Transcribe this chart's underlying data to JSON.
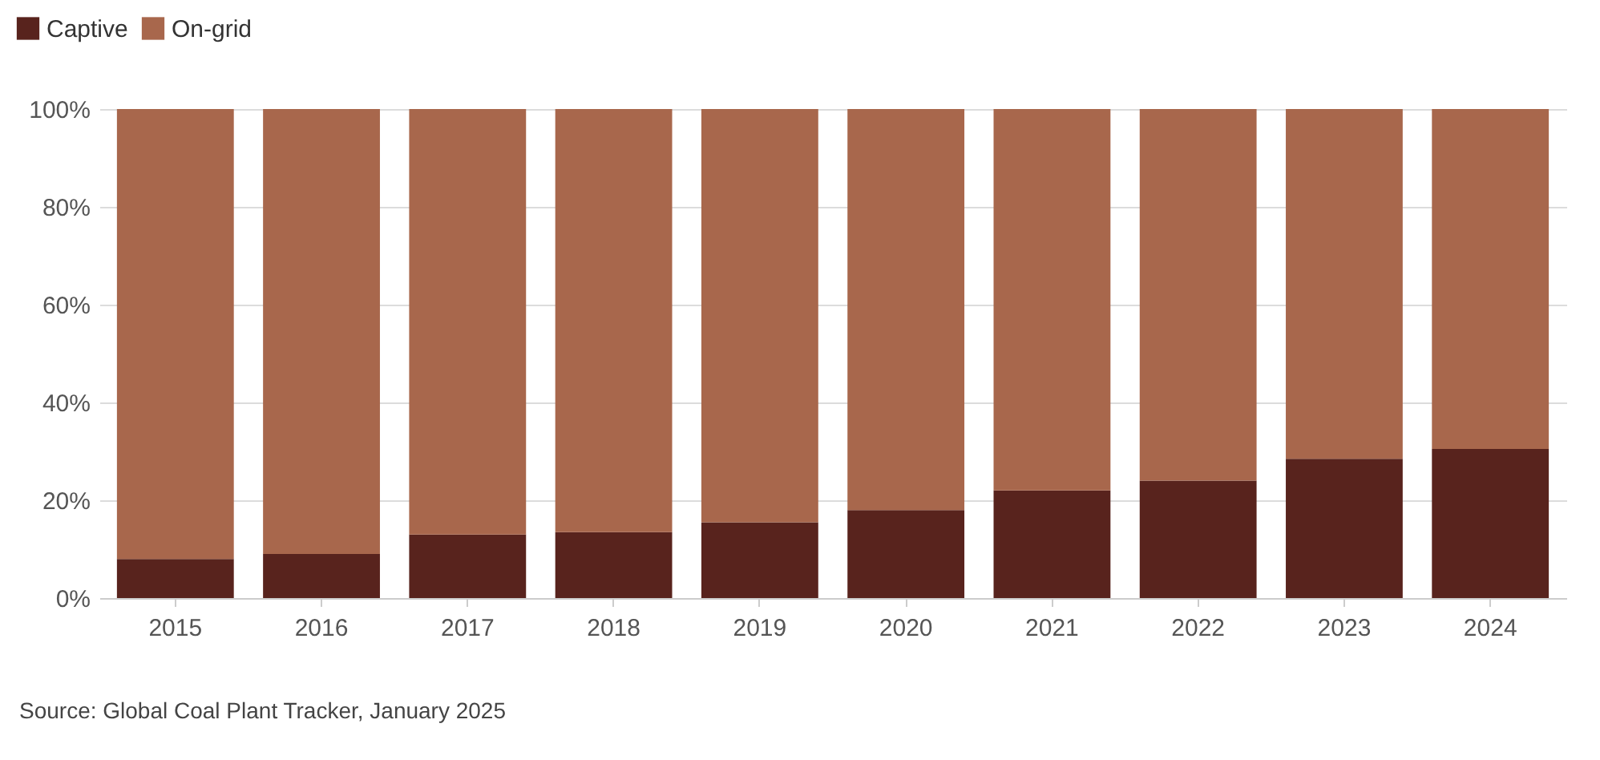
{
  "chart_data": {
    "type": "bar",
    "stacked": true,
    "categories": [
      "2015",
      "2016",
      "2017",
      "2018",
      "2019",
      "2020",
      "2021",
      "2022",
      "2023",
      "2024"
    ],
    "series": [
      {
        "name": "Captive",
        "color": "#58231d",
        "values": [
          8,
          9,
          13,
          13.5,
          15.5,
          18,
          22,
          24,
          28.5,
          30.5
        ]
      },
      {
        "name": "On-grid",
        "color": "#a8674c",
        "values": [
          92,
          91,
          87,
          86.5,
          84.5,
          82,
          78,
          76,
          71.5,
          69.5
        ]
      }
    ],
    "ylim": [
      0,
      100
    ],
    "yticks": [
      {
        "value": 0,
        "label": "0%"
      },
      {
        "value": 20,
        "label": "20%"
      },
      {
        "value": 40,
        "label": "40%"
      },
      {
        "value": 60,
        "label": "60%"
      },
      {
        "value": 80,
        "label": "80%"
      },
      {
        "value": 100,
        "label": "100%"
      }
    ],
    "grid": "y",
    "legend": "top left",
    "annotations": [
      "Source: Global Coal Plant Tracker, January 2025"
    ]
  }
}
